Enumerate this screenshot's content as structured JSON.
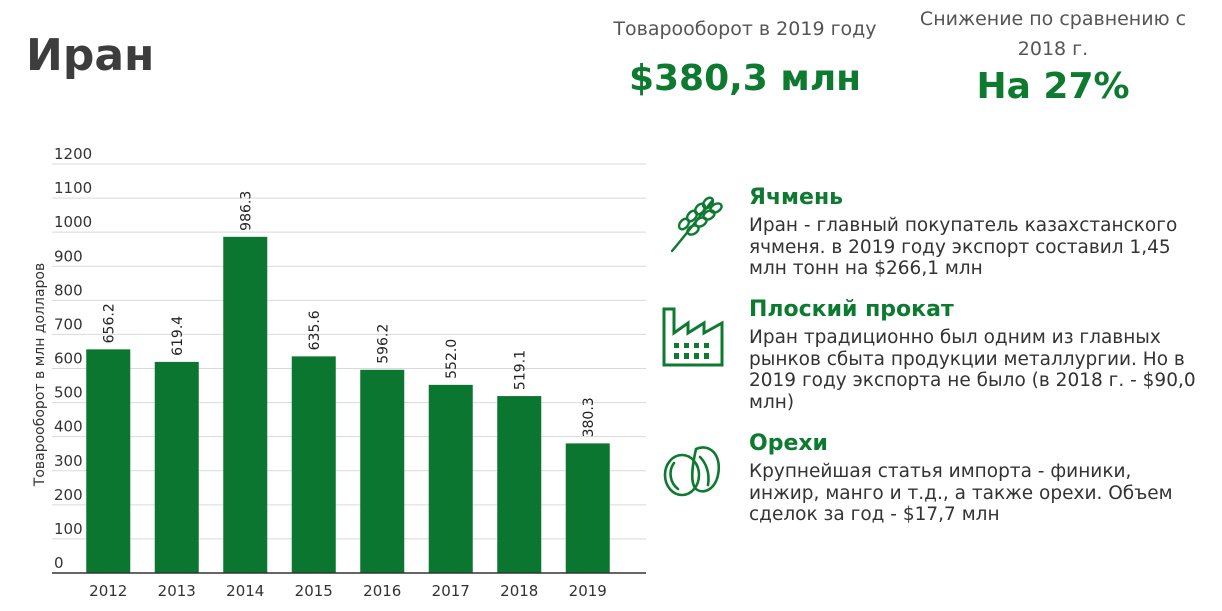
{
  "page": {
    "title": "Иран"
  },
  "stats": [
    {
      "label": "Товарооборот в 2019 году",
      "value": "$380,3 млн"
    },
    {
      "label": "Снижение по сравнению с 2018 г.",
      "value": "На 27%"
    }
  ],
  "colors": {
    "accent": "#0d7a30",
    "bar": "#0b7630",
    "grid": "#d9d9d9",
    "text": "#3a3a3a"
  },
  "chart_data": {
    "type": "bar",
    "title": "",
    "xlabel": "",
    "ylabel": "Товарооборот в млн долларов",
    "categories": [
      "2012",
      "2013",
      "2014",
      "2015",
      "2016",
      "2017",
      "2018",
      "2019"
    ],
    "values": [
      656.2,
      619.4,
      986.3,
      635.6,
      596.2,
      552.0,
      519.1,
      380.3
    ],
    "value_labels": [
      "656.2",
      "619.4",
      "986.3",
      "635.6",
      "596.2",
      "552.0",
      "519.1",
      "380.3"
    ],
    "ylim": [
      0,
      1200
    ],
    "yticks": [
      0,
      100,
      200,
      300,
      400,
      500,
      600,
      700,
      800,
      900,
      1000,
      1100,
      1200
    ],
    "grid": true,
    "legend": "none"
  },
  "info": [
    {
      "icon": "wheat-icon",
      "title": "Ячмень",
      "text": "Иран - главный покупатель казахстанского ячменя. в 2019 году экспорт составил 1,45 млн тонн на $266,1 млн"
    },
    {
      "icon": "factory-icon",
      "title": "Плоский прокат",
      "text": "Иран традиционно был одним из главных рынков сбыта продукции металлургии. Но в 2019 году экспорта не было (в 2018 г. - $90,0 млн)"
    },
    {
      "icon": "nuts-icon",
      "title": "Орехи",
      "text": "Крупнейшая статья импорта - финики, инжир, манго и т.д., а также орехи. Объем сделок за год - $17,7 млн"
    }
  ]
}
